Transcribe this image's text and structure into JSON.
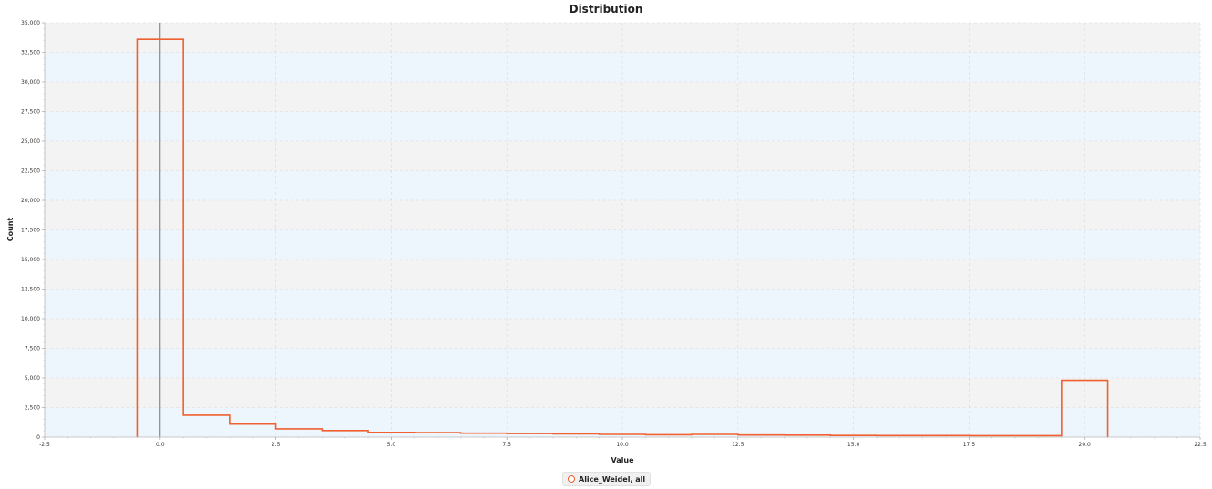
{
  "chart_data": {
    "type": "histogram",
    "title": "Distribution",
    "xlabel": "Value",
    "ylabel": "Count",
    "xlim": [
      -2.5,
      22.5
    ],
    "ylim": [
      0,
      35000
    ],
    "x_ticks": [
      "-2.5",
      "0.0",
      "2.5",
      "5.0",
      "7.5",
      "10.0",
      "12.5",
      "15.0",
      "17.5",
      "20.0",
      "22.5"
    ],
    "y_ticks": [
      "0",
      "2,500",
      "5,000",
      "7,500",
      "10,000",
      "12,500",
      "15,000",
      "17,500",
      "20,000",
      "22,500",
      "25,000",
      "27,500",
      "30,000",
      "32,500",
      "35,000"
    ],
    "grid": true,
    "legend_position": "bottom-center",
    "series": [
      {
        "name": "Alice_Weidel, all",
        "color": "#f06030",
        "bin_width": 1,
        "bin_centers": [
          0,
          1,
          2,
          3,
          4,
          5,
          6,
          7,
          8,
          9,
          10,
          11,
          12,
          13,
          14,
          15,
          16,
          17,
          18,
          19,
          20
        ],
        "values": [
          33600,
          1850,
          1100,
          700,
          550,
          400,
          380,
          330,
          300,
          270,
          230,
          200,
          230,
          180,
          170,
          140,
          130,
          130,
          120,
          120,
          4800
        ]
      }
    ]
  }
}
